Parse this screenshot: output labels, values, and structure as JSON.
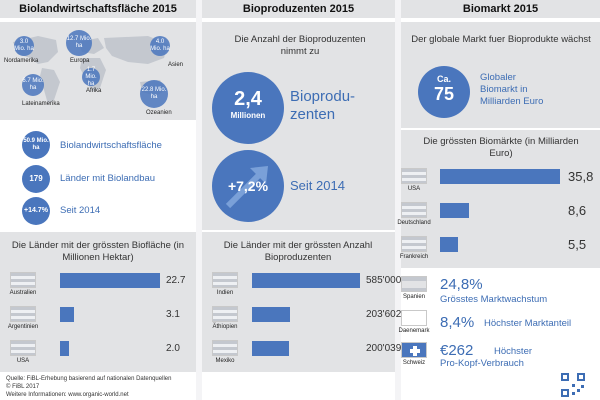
{
  "headers": [
    "Biolandwirtschaftsfläche 2015",
    "Bioproduzenten 2015",
    "Biomarkt 2015"
  ],
  "col1": {
    "map_regions": [
      {
        "name": "Nordamerika",
        "value": "3.0 Mio. ha"
      },
      {
        "name": "Europa",
        "value": "12.7 Mio. ha"
      },
      {
        "name": "Asien",
        "value": "4.0 Mio. ha"
      },
      {
        "name": "Lateinamerika",
        "value": "6.7 Mio. ha"
      },
      {
        "name": "Afrika",
        "value": "1.7 Mio. ha"
      },
      {
        "name": "Ozeanien",
        "value": "22.8 Mio. ha"
      }
    ],
    "stats": [
      {
        "badge": "50.9 Mio. ha",
        "label": "Biolandwirtschaftsfläche"
      },
      {
        "badge": "179",
        "label": "Länder mit Biolandbau"
      },
      {
        "badge": "+14.7%",
        "label": "Seit 2014"
      }
    ]
  },
  "col2": {
    "intro": "Die Anzahl der Bioproduzenten nimmt zu",
    "big_value": "2,4",
    "big_unit": "Millionen",
    "big_label_1": "Bioprodu-",
    "big_label_2": "zenten",
    "growth_value": "+7,2%",
    "growth_label": "Seit 2014"
  },
  "col3": {
    "intro": "Der globale Markt fuer Bioprodukte wächst",
    "circle_top": "Ca.",
    "circle_value": "75",
    "market_label_1": "Globaler",
    "market_label_2": "Biomarkt in",
    "market_label_3": "Milliarden Euro",
    "biggest_title": "Die grössten Biomärkte (in Milliarden Euro)",
    "growth_value": "24,8%",
    "growth_label": "Grösstes Marktwachstum",
    "share_value": "8,4%",
    "share_label": "Höchster Marktanteil",
    "percap_value": "€262",
    "percap_label_1": "Höchster",
    "percap_label_2": "Pro-Kopf-Verbrauch",
    "growth_country": "Spanien",
    "share_country": "Daenemark",
    "percap_country": "Schweiz"
  },
  "footer": {
    "line1": "Quelle: FiBL-Erhebung basierend auf nationalen Datenquellen",
    "line2": "© FiBL 2017",
    "line3": "Weitere Informationen: www.organic-world.net"
  },
  "colors": {
    "accent": "#4a76bd",
    "panel": "#e2e3e5"
  },
  "chart_data": [
    {
      "type": "bar",
      "title": "Die Länder mit der grössten Biofläche (in Millionen Hektar)",
      "categories": [
        "Australien",
        "Argentinien",
        "USA"
      ],
      "values": [
        22.7,
        3.1,
        2.0
      ],
      "value_labels": [
        "22.7",
        "3.1",
        "2.0"
      ],
      "xlim": [
        0,
        22.7
      ]
    },
    {
      "type": "bar",
      "title": "Die Länder mit der grössten Anzahl Bioproduzenten",
      "categories": [
        "Indien",
        "Äthiopien",
        "Mexiko"
      ],
      "values": [
        585000,
        203602,
        200039
      ],
      "value_labels": [
        "585'000",
        "203'602",
        "200'039"
      ],
      "xlim": [
        0,
        585000
      ]
    },
    {
      "type": "bar",
      "title": "Die grössten Biomärkte (in Milliarden Euro)",
      "categories": [
        "USA",
        "Deutschland",
        "Frankreich"
      ],
      "values": [
        35.8,
        8.6,
        5.5
      ],
      "value_labels": [
        "35,8",
        "8,6",
        "5,5"
      ],
      "xlim": [
        0,
        35.8
      ]
    }
  ]
}
